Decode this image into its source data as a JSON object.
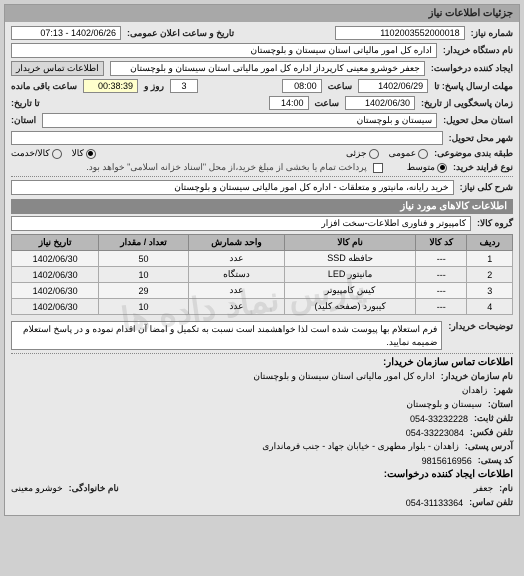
{
  "panel_title": "جزئیات اطلاعات نیاز",
  "need_number_label": "شماره نیاز:",
  "need_number": "1102003552000018",
  "public_date_label": "تاریخ و ساعت اعلان عمومی:",
  "public_date": "1402/06/26 - 07:13",
  "buyer_org_label": "نام دستگاه خریدار:",
  "buyer_org": "اداره کل امور مالیاتی استان سیستان و بلوچستان",
  "requester_label": "ایجاد کننده درخواست:",
  "requester": "جعفر خوشرو معینی کارپرداز اداره کل امور مالیاتی استان سیستان و بلوچستان",
  "buyer_contact_btn": "اطلاعات تماس خریدار",
  "deadline_send_label": "مهلت ارسال پاسخ: تا",
  "deadline_send_date": "1402/06/29",
  "deadline_send_time_label": "ساعت",
  "deadline_send_time": "08:00",
  "days_label": "روز و",
  "days_value": "3",
  "remaining_label": "ساعت باقی مانده",
  "remaining_time": "00:38:39",
  "deadline_response_label": "زمان پاسخگویی از تاریخ:",
  "deadline_response_date": "1402/06/30",
  "deadline_response_date_label": "تا تاریخ:",
  "deadline_response_time_label": "ساعت",
  "deadline_response_time": "14:00",
  "province_label": "استان:",
  "deliver_province_label": "استان محل تحویل:",
  "deliver_province": "سیستان و بلوچستان",
  "deliver_city_label": "شهر محل تحویل:",
  "budget_label": "طبقه بندی موضوعی:",
  "budget_general": "عمومی",
  "budget_public": "جزئی",
  "item_type_label": "کالا",
  "item_type_goods": "کالا",
  "item_type_services": "کالا/خدمت",
  "payment_label": "نوع فرایند خرید:",
  "payment_mid": "متوسط",
  "payment_note_checkbox": "پرداخت تمام یا بخشی از مبلغ خرید،از محل \"اسناد خزانه اسلامی\" خواهد بود.",
  "desc_label": "شرح کلی نیاز:",
  "desc_value": "خرید رایانه، مانیتور و متعلقات - اداره کل امور مالیاتی سیستان و بلوچستان",
  "items_section": "اطلاعات کالاهای مورد نیاز",
  "group_label": "گروه کالا:",
  "group_value": "کامپیوتر و فناوری اطلاعات-سخت افزار",
  "table": {
    "headers": [
      "ردیف",
      "کد کالا",
      "نام کالا",
      "واحد شمارش",
      "تعداد / مقدار",
      "تاریخ نیاز"
    ],
    "rows": [
      [
        "1",
        "---",
        "حافظه SSD",
        "عدد",
        "50",
        "1402/06/30"
      ],
      [
        "2",
        "---",
        "مانیتور LED",
        "دستگاه",
        "10",
        "1402/06/30"
      ],
      [
        "3",
        "---",
        "کیس کامپیوتر",
        "عدد",
        "29",
        "1402/06/30"
      ],
      [
        "4",
        "---",
        "کیبورد (صفحه کلید)",
        "عدد",
        "10",
        "1402/06/30"
      ]
    ]
  },
  "buyer_notes_label": "توضیحات خریدار:",
  "buyer_notes": "فرم استعلام بها پیوست شده است لذا خواهشمند است نسبت به تکمیل و امضا آن اقدام نموده و در پاسخ استعلام ضمیمه نمایید.",
  "contact_section": "اطلاعات تماس سازمان خریدار:",
  "org_name_label": "نام سازمان خریدار:",
  "org_name": "اداره کل امور مالیاتی استان سیستان و بلوچستان",
  "city_label": "شهر:",
  "city": "زاهدان",
  "province2_label": "استان:",
  "province2": "سیستان و بلوچستان",
  "phone_label": "تلفن ثابت:",
  "phone": "054-33232228",
  "fax_label": "تلفن فکس:",
  "fax": "054-33223084",
  "address_label": "آدرس پستی:",
  "address": "زاهدان - بلوار مطهری - خیابان جهاد - جنب فرمانداری",
  "postal_label": "کد پستی:",
  "postal": "9815616956",
  "requester_contact_section": "اطلاعات ایجاد کننده درخواست:",
  "name_label": "نام:",
  "name": "جعفر",
  "family_label": "نام خانوادگی:",
  "family": "خوشرو معینی",
  "phone2_label": "تلفن تماس:",
  "phone2": "054-31133364",
  "watermark": "پارس نماد داده ها"
}
